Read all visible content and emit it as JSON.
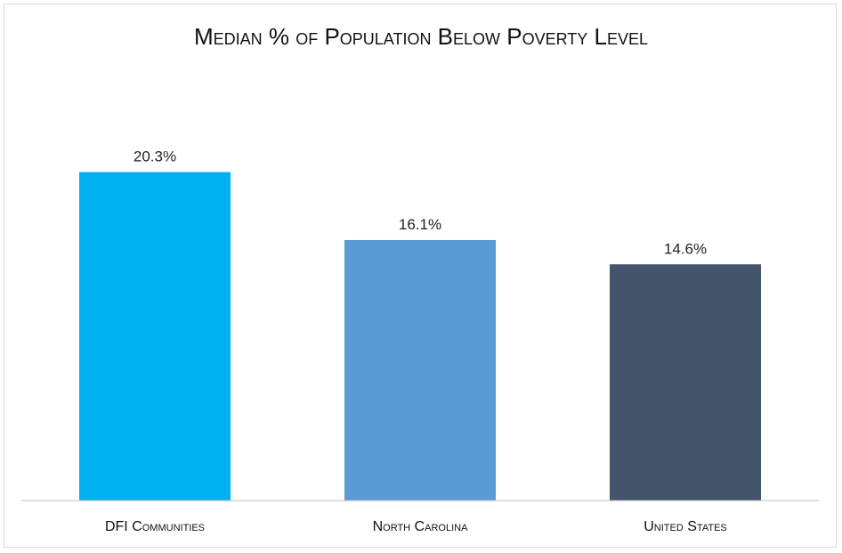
{
  "chart_data": {
    "type": "bar",
    "title": "Median % of Population Below Poverty Level",
    "categories": [
      "DFI Communities",
      "North Carolina",
      "United States"
    ],
    "values": [
      20.3,
      16.1,
      14.6
    ],
    "data_labels": [
      "20.3%",
      "16.1%",
      "14.6%"
    ],
    "colors": [
      "#00b0f0",
      "#5b9bd5",
      "#44546a"
    ],
    "axis_color": "#bfbfbf",
    "xlabel": "",
    "ylabel": "",
    "ylim": [
      0,
      25
    ],
    "grid": false,
    "legend": "none"
  }
}
